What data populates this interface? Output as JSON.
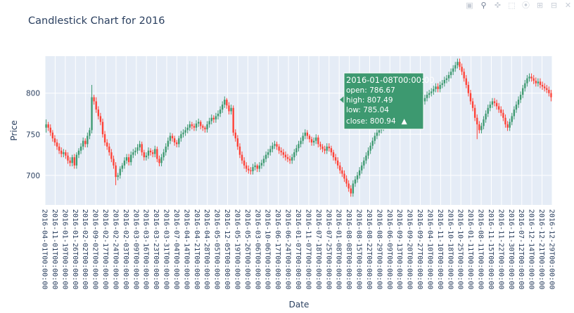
{
  "toolbar": {
    "camera_icon": "camera-icon",
    "zoom_icon": "zoom-icon",
    "pan_icon": "pan-icon",
    "select_icon": "box-select-icon",
    "lasso_icon": "lasso-icon",
    "zoom_in_icon": "zoom-in-icon",
    "zoom_out_icon": "zoom-out-icon",
    "autoscale_icon": "autoscale-icon"
  },
  "chart_data": {
    "type": "candlestick",
    "title": "Candlestick Chart for 2016",
    "xlabel": "Date",
    "ylabel": "Price",
    "ylim": [
      664,
      845
    ],
    "yticks": [
      700,
      750,
      800
    ],
    "grid": true,
    "increasing_color": "#3d9970",
    "decreasing_color": "#ff4136",
    "plot_bgcolor": "#e5ecf6",
    "x_tick_labels": [
      "2016-04-01T00:00:00",
      "2016-11-01T00:00:00",
      "2016-01-19T00:00:00",
      "2016-01-26T00:00:00",
      "2016-02-02T00:00:00",
      "2016-09-02T00:00:00",
      "2016-02-17T00:00:00",
      "2016-02-24T00:00:00",
      "2016-02-03T00:00:00",
      "2016-03-09T00:00:00",
      "2016-03-16T00:00:00",
      "2016-03-23T00:00:00",
      "2016-03-31T00:00:00",
      "2016-07-04T00:00:00",
      "2016-04-14T00:00:00",
      "2016-04-21T00:00:00",
      "2016-04-28T00:00:00",
      "2016-05-05T00:00:00",
      "2016-12-05T00:00:00",
      "2016-05-19T00:00:00",
      "2016-05-26T00:00:00",
      "2016-03-06T00:00:00",
      "2016-10-06T00:00:00",
      "2016-06-17T00:00:00",
      "2016-06-24T00:00:00",
      "2016-01-07T00:00:00",
      "2016-11-07T00:00:00",
      "2016-07-18T00:00:00",
      "2016-07-25T00:00:00",
      "2016-01-08T00:00:00",
      "2016-08-08T00:00:00",
      "2016-08-15T00:00:00",
      "2016-08-22T00:00:00",
      "2016-08-29T00:00:00",
      "2016-06-09T00:00:00",
      "2016-09-13T00:00:00",
      "2016-09-20T00:00:00",
      "2016-09-27T00:00:00",
      "2016-04-10T00:00:00",
      "2016-11-10T00:00:00",
      "2016-10-18T00:00:00",
      "2016-10-25T00:00:00",
      "2016-01-11T00:00:00",
      "2016-08-11T00:00:00",
      "2016-11-15T00:00:00",
      "2016-11-22T00:00:00",
      "2016-11-30T00:00:00",
      "2016-07-12T00:00:00",
      "2016-12-14T00:00:00",
      "2016-12-21T00:00:00",
      "2016-12-29T00:00:00"
    ],
    "hover": {
      "date": "2016-01-08T00:00:00",
      "open_label": "open: 786.67",
      "high_label": "high: 807.49",
      "low_label": "low: 785.04",
      "close_label": "close: 800.94",
      "direction_symbol": "▲",
      "bgcolor": "#3d9970"
    },
    "close": [
      762,
      758,
      752,
      745,
      740,
      735,
      730,
      726,
      728,
      724,
      718,
      715,
      722,
      712,
      725,
      730,
      735,
      742,
      738,
      748,
      755,
      795,
      790,
      780,
      772,
      765,
      750,
      740,
      735,
      728,
      720,
      712,
      698,
      700,
      708,
      712,
      718,
      722,
      716,
      725,
      728,
      730,
      734,
      738,
      728,
      722,
      724,
      730,
      728,
      726,
      732,
      720,
      715,
      722,
      728,
      735,
      742,
      748,
      745,
      740,
      738,
      745,
      750,
      752,
      755,
      758,
      762,
      760,
      758,
      763,
      765,
      760,
      758,
      756,
      762,
      766,
      770,
      768,
      772,
      775,
      780,
      786,
      792,
      785,
      778,
      782,
      752,
      745,
      735,
      725,
      718,
      712,
      708,
      706,
      705,
      710,
      712,
      708,
      712,
      715,
      720,
      725,
      728,
      732,
      736,
      738,
      735,
      730,
      728,
      725,
      722,
      720,
      718,
      722,
      728,
      733,
      738,
      742,
      748,
      752,
      748,
      744,
      740,
      742,
      746,
      738,
      735,
      732,
      730,
      735,
      733,
      728,
      722,
      718,
      712,
      706,
      702,
      696,
      690,
      684,
      678,
      690,
      695,
      700,
      706,
      712,
      718,
      724,
      730,
      736,
      742,
      748,
      752,
      755,
      758,
      760,
      762,
      760,
      765,
      770,
      790,
      794,
      800,
      796,
      790,
      785,
      780,
      776,
      772,
      770,
      775,
      780,
      785,
      790,
      794,
      798,
      800,
      802,
      805,
      808,
      805,
      810,
      812,
      816,
      818,
      822,
      826,
      830,
      834,
      838,
      832,
      826,
      818,
      810,
      800,
      790,
      782,
      770,
      762,
      755,
      760,
      768,
      775,
      782,
      786,
      790,
      788,
      784,
      780,
      776,
      770,
      762,
      758,
      765,
      772,
      780,
      786,
      792,
      798,
      806,
      812,
      818,
      820,
      818,
      815,
      812,
      814,
      810,
      808,
      806,
      804,
      800,
      795
    ],
    "open": [
      758,
      762,
      758,
      752,
      745,
      740,
      735,
      730,
      726,
      728,
      724,
      718,
      715,
      722,
      712,
      725,
      730,
      735,
      742,
      738,
      748,
      755,
      795,
      790,
      780,
      772,
      765,
      750,
      740,
      735,
      728,
      720,
      712,
      698,
      700,
      708,
      712,
      718,
      722,
      716,
      725,
      728,
      730,
      734,
      738,
      728,
      722,
      724,
      730,
      728,
      726,
      732,
      720,
      715,
      722,
      728,
      735,
      742,
      748,
      745,
      740,
      738,
      745,
      750,
      752,
      755,
      758,
      762,
      760,
      758,
      763,
      765,
      760,
      758,
      756,
      762,
      766,
      770,
      768,
      772,
      775,
      780,
      786,
      792,
      785,
      778,
      782,
      752,
      745,
      735,
      725,
      718,
      712,
      708,
      706,
      705,
      710,
      712,
      708,
      712,
      715,
      720,
      725,
      728,
      732,
      736,
      738,
      735,
      730,
      728,
      725,
      722,
      720,
      718,
      722,
      728,
      733,
      738,
      742,
      748,
      752,
      748,
      744,
      740,
      742,
      746,
      738,
      735,
      732,
      730,
      735,
      733,
      728,
      722,
      718,
      712,
      706,
      702,
      696,
      690,
      684,
      678,
      690,
      695,
      700,
      706,
      712,
      718,
      724,
      730,
      736,
      742,
      748,
      752,
      755,
      758,
      760,
      762,
      760,
      765,
      786,
      790,
      794,
      800,
      796,
      790,
      785,
      780,
      776,
      772,
      770,
      775,
      780,
      785,
      790,
      794,
      798,
      800,
      802,
      805,
      808,
      805,
      810,
      812,
      816,
      818,
      822,
      826,
      830,
      834,
      838,
      832,
      826,
      818,
      810,
      800,
      790,
      782,
      770,
      762,
      755,
      760,
      768,
      775,
      782,
      786,
      790,
      788,
      784,
      780,
      776,
      770,
      762,
      758,
      765,
      772,
      780,
      786,
      792,
      798,
      806,
      812,
      818,
      820,
      818,
      815,
      812,
      814,
      810,
      808,
      806,
      804,
      800
    ],
    "high": [
      768,
      765,
      762,
      755,
      749,
      744,
      739,
      734,
      732,
      731,
      728,
      722,
      725,
      726,
      728,
      733,
      739,
      746,
      745,
      752,
      758,
      810,
      798,
      795,
      784,
      776,
      769,
      754,
      744,
      739,
      732,
      724,
      716,
      703,
      711,
      715,
      722,
      726,
      726,
      729,
      732,
      734,
      738,
      742,
      741,
      731,
      728,
      734,
      733,
      731,
      736,
      735,
      724,
      726,
      732,
      739,
      746,
      752,
      751,
      748,
      743,
      748,
      754,
      756,
      759,
      762,
      766,
      765,
      763,
      767,
      769,
      767,
      762,
      760,
      766,
      770,
      774,
      773,
      776,
      779,
      784,
      790,
      796,
      794,
      789,
      786,
      785,
      756,
      749,
      739,
      729,
      722,
      716,
      712,
      710,
      714,
      716,
      714,
      716,
      719,
      724,
      729,
      732,
      736,
      740,
      742,
      741,
      738,
      734,
      732,
      729,
      726,
      724,
      726,
      732,
      737,
      742,
      746,
      752,
      756,
      755,
      750,
      747,
      746,
      750,
      749,
      741,
      738,
      736,
      739,
      739,
      736,
      731,
      726,
      722,
      716,
      710,
      706,
      700,
      694,
      688,
      694,
      699,
      704,
      710,
      716,
      722,
      728,
      734,
      740,
      746,
      752,
      756,
      759,
      762,
      764,
      766,
      766,
      769,
      774,
      807,
      797,
      804,
      803,
      800,
      794,
      789,
      784,
      780,
      776,
      779,
      784,
      789,
      794,
      798,
      802,
      804,
      806,
      809,
      812,
      812,
      814,
      816,
      820,
      822,
      826,
      830,
      834,
      838,
      842,
      842,
      836,
      830,
      822,
      814,
      804,
      794,
      786,
      774,
      766,
      764,
      772,
      779,
      786,
      790,
      794,
      794,
      792,
      788,
      784,
      780,
      774,
      766,
      769,
      776,
      784,
      790,
      796,
      802,
      810,
      816,
      822,
      824,
      824,
      822,
      819,
      818,
      818,
      814,
      812,
      810,
      808,
      804
    ],
    "low": [
      752,
      754,
      748,
      741,
      736,
      731,
      726,
      722,
      722,
      720,
      714,
      711,
      711,
      708,
      708,
      721,
      726,
      731,
      734,
      734,
      744,
      751,
      786,
      776,
      768,
      761,
      746,
      736,
      731,
      724,
      716,
      708,
      688,
      694,
      696,
      704,
      708,
      714,
      712,
      712,
      721,
      724,
      726,
      730,
      724,
      718,
      718,
      720,
      724,
      722,
      722,
      716,
      711,
      711,
      718,
      724,
      731,
      738,
      741,
      736,
      734,
      734,
      741,
      746,
      748,
      751,
      754,
      756,
      754,
      754,
      759,
      756,
      754,
      752,
      752,
      758,
      762,
      764,
      764,
      768,
      771,
      776,
      782,
      781,
      774,
      774,
      748,
      741,
      731,
      721,
      714,
      708,
      704,
      702,
      701,
      701,
      706,
      704,
      704,
      708,
      711,
      716,
      721,
      724,
      728,
      732,
      731,
      726,
      724,
      721,
      718,
      716,
      714,
      714,
      718,
      724,
      729,
      734,
      738,
      744,
      744,
      740,
      736,
      736,
      738,
      734,
      731,
      728,
      726,
      726,
      729,
      724,
      718,
      714,
      708,
      702,
      698,
      692,
      686,
      680,
      674,
      674,
      686,
      691,
      696,
      702,
      708,
      714,
      720,
      726,
      732,
      738,
      744,
      748,
      751,
      754,
      756,
      756,
      756,
      761,
      785,
      786,
      790,
      792,
      786,
      781,
      776,
      772,
      768,
      766,
      766,
      771,
      776,
      781,
      786,
      790,
      794,
      796,
      798,
      801,
      801,
      801,
      806,
      808,
      812,
      814,
      818,
      822,
      826,
      830,
      828,
      822,
      814,
      806,
      796,
      786,
      778,
      766,
      744,
      751,
      751,
      756,
      764,
      771,
      778,
      782,
      784,
      780,
      776,
      772,
      766,
      758,
      754,
      754,
      761,
      768,
      776,
      782,
      788,
      794,
      802,
      808,
      814,
      814,
      811,
      808,
      808,
      806,
      804,
      802,
      800,
      796,
      790
    ]
  }
}
